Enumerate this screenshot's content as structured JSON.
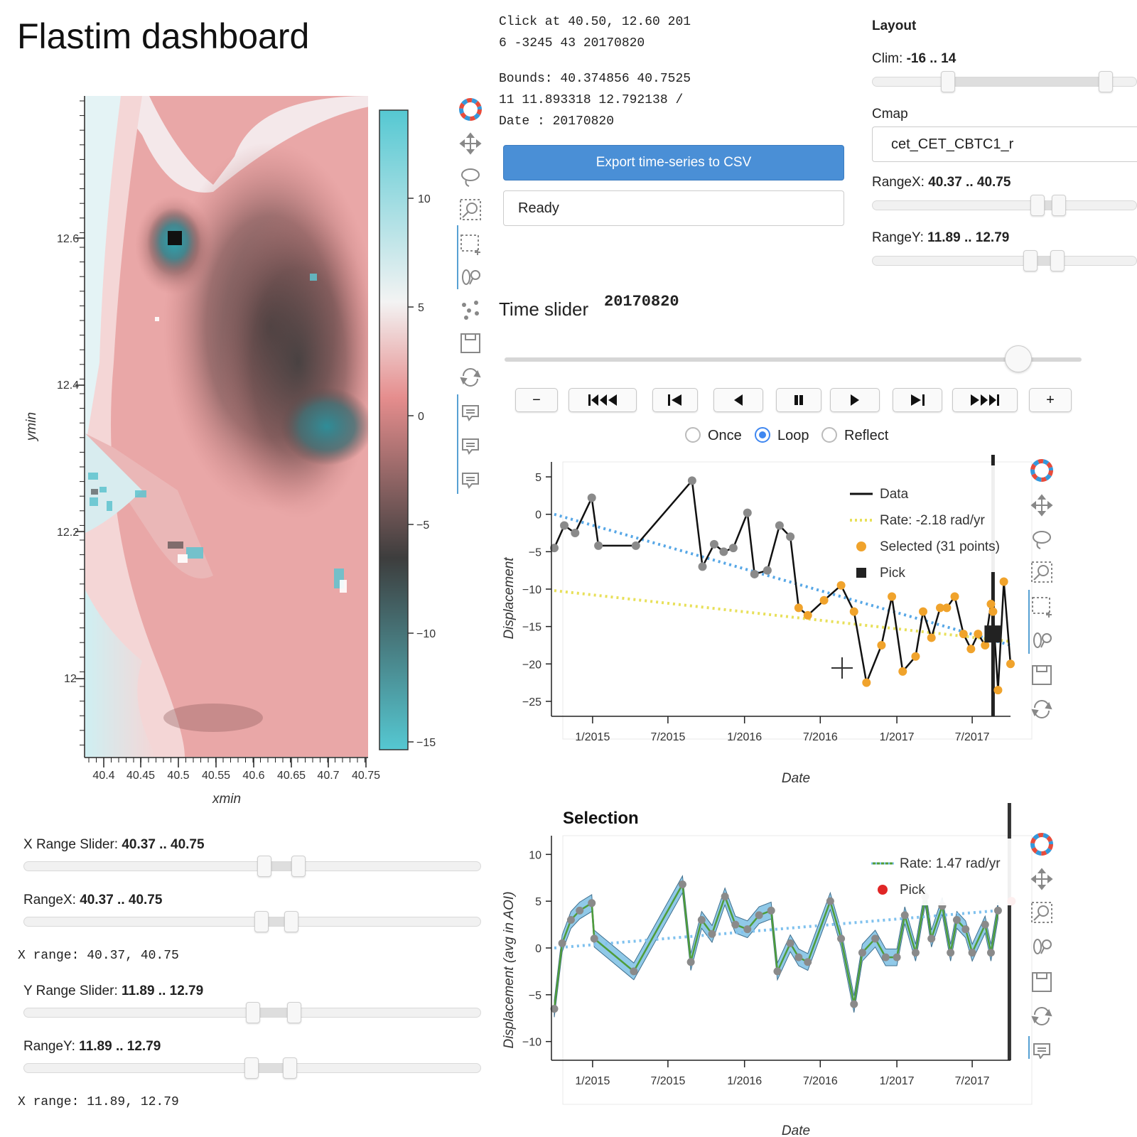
{
  "page_title": "Flastim dashboard",
  "info": {
    "click_line1": "Click at 40.50, 12.60 201",
    "click_line2": "6 -3245 43 20170820",
    "bounds_line1": "Bounds: 40.374856 40.7525",
    "bounds_line2": "11 11.893318 12.792138 /",
    "date_line": "Date : 20170820"
  },
  "export_button": "Export time-series to CSV",
  "status": "Ready",
  "layout_panel": {
    "heading": "Layout",
    "clim_label": "Clim: ",
    "clim_value": "-16 .. 14",
    "clim_range": [
      0.2,
      0.93
    ],
    "cmap_label": "Cmap",
    "cmap_value": "cet_CET_CBTC1_r",
    "rangex_label": "RangeX: ",
    "rangex_value": "40.37 .. 40.75",
    "rangey_label": "RangeY: ",
    "rangey_value": "11.89 .. 12.79"
  },
  "time_slider": {
    "label": "Time slider",
    "value": "20170820",
    "position": 0.89,
    "buttons": [
      "−",
      "⏮◀",
      "⏮",
      "◀",
      "⏸",
      "▶",
      "▶⏭",
      "▶⏭",
      "+"
    ],
    "loop_options": [
      "Once",
      "Loop",
      "Reflect"
    ],
    "selected_option": "Loop"
  },
  "map": {
    "xlabel": "xmin",
    "ylabel": "ymin",
    "xticks": [
      "40.4",
      "40.45",
      "40.5",
      "40.55",
      "40.6",
      "40.65",
      "40.7",
      "40.75"
    ],
    "yticks": [
      "12.6",
      "12.4",
      "12.2",
      "12"
    ],
    "colorbar_ticks": [
      "10",
      "5",
      "0",
      "−5",
      "−10",
      "−15"
    ],
    "colormap": [
      "#55c8d2",
      "#f3f3f3",
      "#e58d8d",
      "#3d3d3d",
      "#55c8d2"
    ]
  },
  "left_sliders": {
    "xrange_slider_label": "X Range Slider: ",
    "xrange_slider_value": "40.37 .. 40.75",
    "rangex_label": "RangeX: ",
    "rangex_value": "40.37 .. 40.75",
    "x_range_text": "X range: 40.37, 40.75",
    "yrange_slider_label": "Y Range Slider: ",
    "yrange_slider_value": "11.89 .. 12.79",
    "rangey_label": "RangeY: ",
    "rangey_value": "11.89 .. 12.79",
    "y_range_text": "X range: 11.89, 12.79"
  },
  "chart_data": [
    {
      "type": "line",
      "title": "",
      "xlabel": "Date",
      "ylabel": "Displacement",
      "xticks": [
        "1/2015",
        "7/2015",
        "1/2016",
        "7/2016",
        "1/2017",
        "7/2017"
      ],
      "yticks": [
        5,
        0,
        -5,
        -10,
        -15,
        -20,
        -25
      ],
      "ylim": [
        -27,
        7
      ],
      "legend": [
        "Data",
        "Rate: -2.18 rad/yr",
        "Selected (31 points)",
        "Pick"
      ],
      "legend_position": "top-right",
      "series": [
        {
          "name": "Data",
          "color": "#111111",
          "x": [
            "2014-10-01",
            "2014-10-25",
            "2014-11-20",
            "2014-12-30",
            "2015-01-15",
            "2015-04-15",
            "2015-08-28",
            "2015-09-22",
            "2015-10-20",
            "2015-11-12",
            "2015-12-05",
            "2016-01-08",
            "2016-01-25",
            "2016-02-25",
            "2016-03-25",
            "2016-04-20",
            "2016-05-10",
            "2016-06-01",
            "2016-07-10",
            "2016-08-20",
            "2016-09-20",
            "2016-10-20",
            "2016-11-25",
            "2016-12-20",
            "2017-01-15",
            "2017-02-15",
            "2017-03-05",
            "2017-03-25",
            "2017-04-15",
            "2017-05-01",
            "2017-05-20",
            "2017-06-10",
            "2017-06-28",
            "2017-07-15",
            "2017-08-01",
            "2017-08-15",
            "2017-08-20",
            "2017-09-01",
            "2017-09-15",
            "2017-10-01"
          ],
          "values": [
            -4.5,
            -1.5,
            -2.5,
            2.2,
            -4.2,
            -4.2,
            4.5,
            -7,
            -4,
            -5,
            -4.5,
            0.2,
            -8,
            -7.5,
            -1.5,
            -3,
            -12.5,
            -13.5,
            -11.5,
            -9.5,
            -13,
            -22.5,
            -17.5,
            -11,
            -21,
            -19,
            -13,
            -16.5,
            -12.5,
            -12.5,
            -11,
            -16,
            -18,
            -16,
            -17.5,
            -12,
            -13,
            -23.5,
            -9,
            -20
          ]
        },
        {
          "name": "Rate: -2.18 rad/yr",
          "color": "#57a7e6",
          "style": "dotted",
          "x": [
            "2014-10-01",
            "2017-10-01"
          ],
          "values": [
            0,
            -17.5
          ]
        },
        {
          "name": "Rate (yellow)",
          "color": "#e8e05a",
          "style": "dotted",
          "x": [
            "2014-10-01",
            "2017-10-01"
          ],
          "values": [
            -10.2,
            -17
          ]
        }
      ],
      "selected_points_color": "#f0a32c",
      "pick": {
        "x": "2017-08-20",
        "y": -16,
        "color": "#222222"
      }
    },
    {
      "type": "area",
      "title": "Selection",
      "xlabel": "Date",
      "ylabel": "Displacement (avg in AOI)",
      "xticks": [
        "1/2015",
        "7/2015",
        "1/2016",
        "7/2016",
        "1/2017",
        "7/2017"
      ],
      "yticks": [
        10,
        5,
        0,
        -5,
        -10
      ],
      "ylim": [
        -12,
        12
      ],
      "legend": [
        "Rate: 1.47 rad/yr",
        "Pick"
      ],
      "legend_position": "top-right",
      "series": [
        {
          "name": "Rate: 1.47 rad/yr",
          "color": "#4f9d3a",
          "x": [
            "2014-10-01",
            "2014-10-20",
            "2014-11-10",
            "2014-12-01",
            "2014-12-30",
            "2015-01-05",
            "2015-04-10",
            "2015-08-05",
            "2015-08-25",
            "2015-09-20",
            "2015-10-15",
            "2015-11-15",
            "2015-12-10",
            "2016-01-08",
            "2016-02-05",
            "2016-03-05",
            "2016-03-20",
            "2016-04-20",
            "2016-05-10",
            "2016-06-01",
            "2016-07-25",
            "2016-08-20",
            "2016-09-20",
            "2016-10-10",
            "2016-11-10",
            "2016-12-05",
            "2017-01-01",
            "2017-01-20",
            "2017-02-15",
            "2017-03-10",
            "2017-03-25",
            "2017-04-20",
            "2017-05-10",
            "2017-05-25",
            "2017-06-15",
            "2017-07-01",
            "2017-08-01",
            "2017-08-15",
            "2017-09-01"
          ],
          "values": [
            -6.5,
            0.5,
            3,
            4,
            4.8,
            1,
            -2.5,
            6.8,
            -1.5,
            3,
            1.5,
            5.5,
            2.5,
            2,
            3.5,
            4,
            -2.5,
            0.5,
            -1,
            -1.5,
            5,
            1,
            -6,
            -0.5,
            1,
            -1,
            -1,
            3.5,
            -0.5,
            5.5,
            1,
            4.5,
            -0.5,
            3,
            2,
            -0.5,
            2.5,
            -0.5,
            4
          ]
        },
        {
          "name": "Rate dotted",
          "color": "#7fc1ee",
          "style": "dotted",
          "x": [
            "2014-10-01",
            "2017-09-01"
          ],
          "values": [
            0,
            4
          ]
        }
      ],
      "band_color": "#7cc0e4",
      "pick": {
        "x": "2017-09-01",
        "y": 5,
        "color": "#e02626"
      }
    }
  ],
  "tools": [
    "bokeh-logo-icon",
    "pan-icon",
    "lasso-icon",
    "zoom-icon",
    "box-select-icon",
    "wheel-zoom-icon",
    "tap-icon",
    "save-icon",
    "reset-icon",
    "hover-icon"
  ]
}
